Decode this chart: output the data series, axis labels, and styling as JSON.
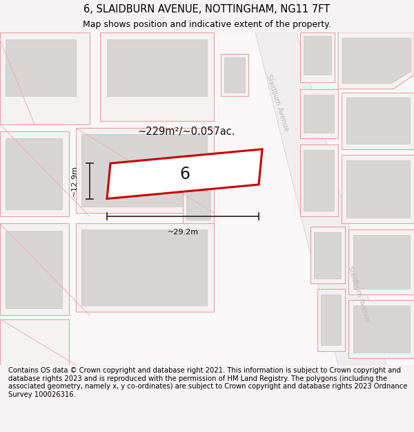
{
  "title_line1": "6, SLAIDBURN AVENUE, NOTTINGHAM, NG11 7FT",
  "title_line2": "Map shows position and indicative extent of the property.",
  "footer_text": "Contains OS data © Crown copyright and database right 2021. This information is subject to Crown copyright and database rights 2023 and is reproduced with the permission of HM Land Registry. The polygons (including the associated geometry, namely x, y co-ordinates) are subject to Crown copyright and database rights 2023 Ordnance Survey 100026316.",
  "area_label": "~229m²/~0.057ac.",
  "number_label": "6",
  "width_label": "~29.2m",
  "height_label": "~12.9m",
  "title_fontsize": 10.5,
  "subtitle_fontsize": 9,
  "footer_fontsize": 7.2,
  "map_bg": "#faf8f8",
  "road_fill": "#f0eeee",
  "plot_outer_fc": "#f5f2f2",
  "plot_outer_ec": "#e8a0a0",
  "plot_inner_fc": "#d8d5d5",
  "plot_inner_ec": "#c8c5c5",
  "highlight_ec": "#cc0000",
  "highlight_fc": "#ffffff",
  "road_label_color": "#c0bbbb",
  "dim_color": "#333333",
  "text_color": "#111111"
}
